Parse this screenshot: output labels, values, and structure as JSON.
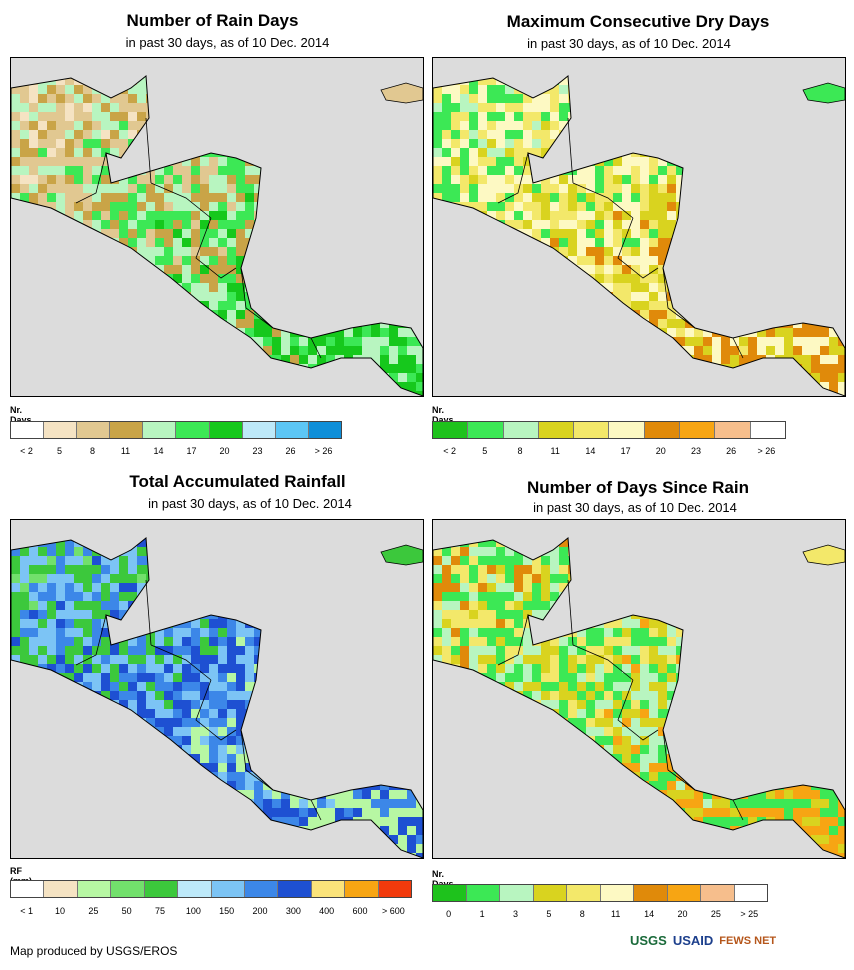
{
  "panels": [
    {
      "title": "Number of Rain Days",
      "subtitle": "in past 30 days, as of 10 Dec. 2014",
      "legend_title": "Nr. Days",
      "legend_colors": [
        "#ffffff",
        "#f5e3c3",
        "#e1c891",
        "#c9a447",
        "#b8f5c0",
        "#3ce855",
        "#16c81c",
        "#bde9f9",
        "#5cc6f5",
        "#0f8fd9"
      ],
      "legend_labels": [
        "< 2",
        "5",
        "8",
        "11",
        "14",
        "17",
        "20",
        "23",
        "26",
        "> 26"
      ],
      "palette": [
        "#f5e3c3",
        "#e1c891",
        "#c9a447",
        "#b8f5c0",
        "#3ce855",
        "#16c81c"
      ]
    },
    {
      "title": "Maximum Consecutive Dry Days",
      "subtitle": "in past 30 days, as of 10 Dec. 2014",
      "legend_title": "Nr. Days",
      "legend_colors": [
        "#1ec21c",
        "#3ce855",
        "#b8f5c0",
        "#d9d31f",
        "#f3e86a",
        "#fdf9c3",
        "#e08a0a",
        "#f7a513",
        "#f6be8c",
        "#ffffff"
      ],
      "legend_labels": [
        "< 2",
        "5",
        "8",
        "11",
        "14",
        "17",
        "20",
        "23",
        "26",
        "> 26"
      ],
      "palette": [
        "#b8f5c0",
        "#3ce855",
        "#f3e86a",
        "#fdf9c3",
        "#d9d31f",
        "#e08a0a"
      ]
    },
    {
      "title": "Total Accumulated Rainfall",
      "subtitle": "in past 30 days, as of 10 Dec. 2014",
      "legend_title": "RF (mm)",
      "legend_colors": [
        "#ffffff",
        "#f5e3c3",
        "#b7f7a3",
        "#72e06c",
        "#3cc83c",
        "#bde9f9",
        "#7cc4f5",
        "#3c87e8",
        "#1e50d2",
        "#fbe37a",
        "#f7a513",
        "#f23a0c"
      ],
      "legend_labels": [
        "< 1",
        "10",
        "25",
        "50",
        "75",
        "100",
        "150",
        "200",
        "300",
        "400",
        "600",
        "> 600"
      ],
      "palette": [
        "#72e06c",
        "#3cc83c",
        "#7cc4f5",
        "#3c87e8",
        "#1e50d2",
        "#b7f7a3"
      ]
    },
    {
      "title": "Number of Days Since Rain",
      "subtitle": "in past 30 days, as of 10 Dec. 2014",
      "legend_title": "Nr. Days",
      "legend_colors": [
        "#1ec21c",
        "#3ce855",
        "#b8f5c0",
        "#d9d31f",
        "#f3e86a",
        "#fdf9c3",
        "#e08a0a",
        "#f7a513",
        "#f6be8c",
        "#ffffff"
      ],
      "legend_labels": [
        "0",
        "1",
        "3",
        "5",
        "8",
        "11",
        "14",
        "20",
        "25",
        "> 25"
      ],
      "palette": [
        "#e08a0a",
        "#f3e86a",
        "#b8f5c0",
        "#3ce855",
        "#d9d31f",
        "#f7a513"
      ]
    }
  ],
  "credit": "Map produced by USGS/EROS",
  "logos": [
    "USGS",
    "USAID",
    "FEWS NET"
  ],
  "ocean_color": "#dcdcdc"
}
